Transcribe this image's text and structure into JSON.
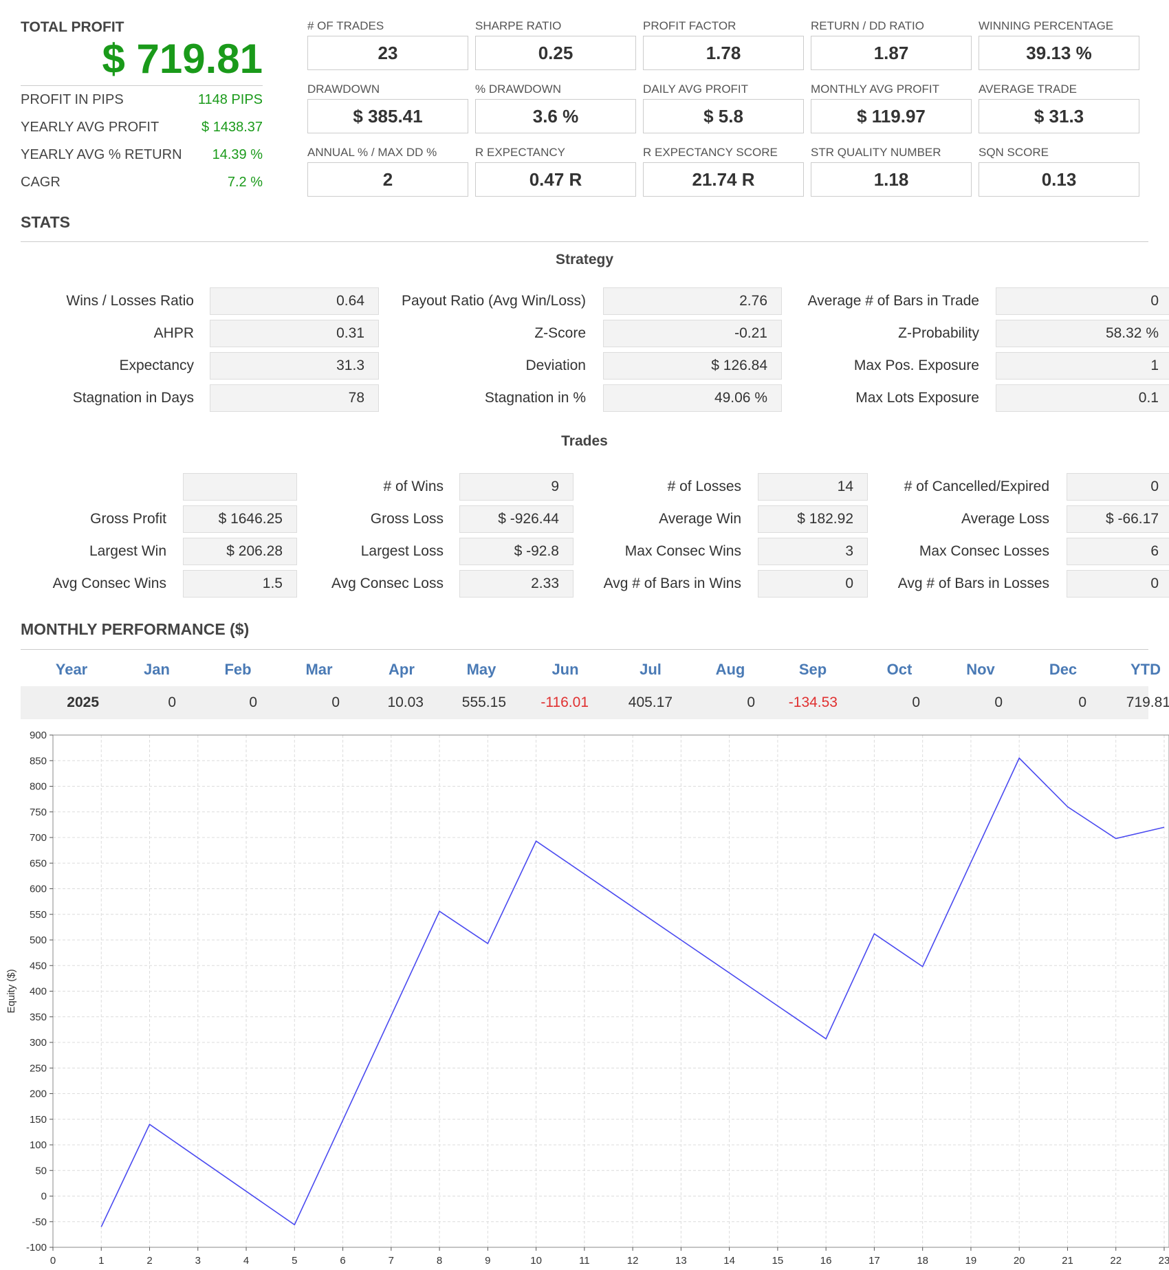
{
  "summary": {
    "total_profit_label": "TOTAL PROFIT",
    "total_profit_value": "$ 719.81",
    "rows": [
      {
        "label": "PROFIT IN PIPS",
        "value": "1148 PIPS"
      },
      {
        "label": "YEARLY AVG PROFIT",
        "value": "$ 1438.37"
      },
      {
        "label": "YEARLY AVG % RETURN",
        "value": "14.39 %"
      },
      {
        "label": "CAGR",
        "value": "7.2 %"
      }
    ]
  },
  "metrics": [
    {
      "label": "# OF TRADES",
      "value": "23"
    },
    {
      "label": "SHARPE RATIO",
      "value": "0.25"
    },
    {
      "label": "PROFIT FACTOR",
      "value": "1.78"
    },
    {
      "label": "RETURN / DD RATIO",
      "value": "1.87"
    },
    {
      "label": "WINNING PERCENTAGE",
      "value": "39.13 %"
    },
    {
      "label": "DRAWDOWN",
      "value": "$ 385.41"
    },
    {
      "label": "% DRAWDOWN",
      "value": "3.6 %"
    },
    {
      "label": "DAILY AVG PROFIT",
      "value": "$ 5.8"
    },
    {
      "label": "MONTHLY AVG PROFIT",
      "value": "$ 119.97"
    },
    {
      "label": "AVERAGE TRADE",
      "value": "$ 31.3"
    },
    {
      "label": "ANNUAL % / MAX DD %",
      "value": "2"
    },
    {
      "label": "R EXPECTANCY",
      "value": "0.47 R"
    },
    {
      "label": "R EXPECTANCY SCORE",
      "value": "21.74 R"
    },
    {
      "label": "STR QUALITY NUMBER",
      "value": "1.18"
    },
    {
      "label": "SQN SCORE",
      "value": "0.13"
    }
  ],
  "stats": {
    "title": "STATS",
    "strategy_title": "Strategy",
    "strategy": [
      [
        {
          "label": "Wins / Losses Ratio",
          "value": "0.64"
        },
        {
          "label": "Payout Ratio (Avg Win/Loss)",
          "value": "2.76"
        },
        {
          "label": "Average # of Bars in Trade",
          "value": "0"
        }
      ],
      [
        {
          "label": "AHPR",
          "value": "0.31"
        },
        {
          "label": "Z-Score",
          "value": "-0.21"
        },
        {
          "label": "Z-Probability",
          "value": "58.32 %"
        }
      ],
      [
        {
          "label": "Expectancy",
          "value": "31.3"
        },
        {
          "label": "Deviation",
          "value": "$ 126.84"
        },
        {
          "label": "Max Pos. Exposure",
          "value": "1"
        }
      ],
      [
        {
          "label": "Stagnation in Days",
          "value": "78"
        },
        {
          "label": "Stagnation in %",
          "value": "49.06 %"
        },
        {
          "label": "Max Lots Exposure",
          "value": "0.1"
        }
      ]
    ],
    "trades_title": "Trades",
    "trades": [
      [
        {
          "label": "",
          "value": ""
        },
        {
          "label": "# of Wins",
          "value": "9"
        },
        {
          "label": "# of Losses",
          "value": "14"
        },
        {
          "label": "# of Cancelled/Expired",
          "value": "0"
        }
      ],
      [
        {
          "label": "Gross Profit",
          "value": "$ 1646.25"
        },
        {
          "label": "Gross Loss",
          "value": "$ -926.44"
        },
        {
          "label": "Average Win",
          "value": "$ 182.92"
        },
        {
          "label": "Average Loss",
          "value": "$ -66.17"
        }
      ],
      [
        {
          "label": "Largest Win",
          "value": "$ 206.28"
        },
        {
          "label": "Largest Loss",
          "value": "$ -92.8"
        },
        {
          "label": "Max Consec Wins",
          "value": "3"
        },
        {
          "label": "Max Consec Losses",
          "value": "6"
        }
      ],
      [
        {
          "label": "Avg Consec Wins",
          "value": "1.5"
        },
        {
          "label": "Avg Consec Loss",
          "value": "2.33"
        },
        {
          "label": "Avg # of Bars in Wins",
          "value": "0"
        },
        {
          "label": "Avg # of Bars in Losses",
          "value": "0"
        }
      ]
    ]
  },
  "monthly": {
    "title": "MONTHLY PERFORMANCE ($)",
    "headers": [
      "Year",
      "Jan",
      "Feb",
      "Mar",
      "Apr",
      "May",
      "Jun",
      "Jul",
      "Aug",
      "Sep",
      "Oct",
      "Nov",
      "Dec",
      "YTD"
    ],
    "row": [
      "2025",
      "0",
      "0",
      "0",
      "10.03",
      "555.15",
      "-116.01",
      "405.17",
      "0",
      "-134.53",
      "0",
      "0",
      "0",
      "719.81"
    ],
    "negative_color": "#e03030",
    "header_color": "#4a7ab5"
  },
  "chart_data": {
    "type": "line",
    "ylabel": "Equity ($)",
    "xlabel": "",
    "x": [
      1,
      2,
      5,
      8,
      9,
      10,
      16,
      17,
      18,
      20,
      21,
      22,
      23
    ],
    "series": [
      {
        "values": [
          -60,
          140,
          -56,
          556,
          493,
          693,
          307,
          512,
          448,
          855,
          760,
          698,
          720
        ]
      }
    ],
    "xlim": [
      0,
      23
    ],
    "ylim": [
      -100,
      900
    ],
    "yticks": [
      -100,
      -50,
      0,
      50,
      100,
      150,
      200,
      250,
      300,
      350,
      400,
      450,
      500,
      550,
      600,
      650,
      700,
      750,
      800,
      850,
      900
    ],
    "xticks": [
      "0",
      "1",
      "2",
      "3",
      "4",
      "5",
      "6",
      "7",
      "8",
      "9",
      "10",
      "11",
      "12",
      "13",
      "14",
      "15",
      "16",
      "17",
      "18",
      "19",
      "20",
      "21",
      "22",
      "23"
    ],
    "grid": true,
    "line_color": "#4a4af0"
  }
}
